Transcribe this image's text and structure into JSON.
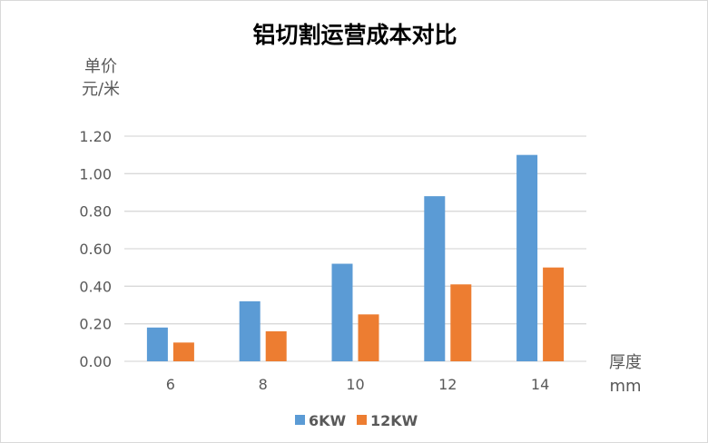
{
  "chart_data": {
    "type": "bar",
    "title": "铝切割运营成本对比",
    "ylabel": [
      "单价",
      "元/米"
    ],
    "xlabel": [
      "厚度",
      "mm"
    ],
    "categories": [
      "6",
      "8",
      "10",
      "12",
      "14"
    ],
    "series": [
      {
        "name": "6KW",
        "values": [
          0.18,
          0.32,
          0.52,
          0.88,
          1.1
        ],
        "color": "#5b9bd5"
      },
      {
        "name": "12KW",
        "values": [
          0.1,
          0.16,
          0.25,
          0.41,
          0.5
        ],
        "color": "#ed7d31"
      }
    ],
    "ylim": [
      0,
      1.2
    ],
    "yticks": [
      "0.00",
      "0.20",
      "0.40",
      "0.60",
      "0.80",
      "1.00",
      "1.20"
    ],
    "grid": true,
    "legend": "bottom"
  }
}
